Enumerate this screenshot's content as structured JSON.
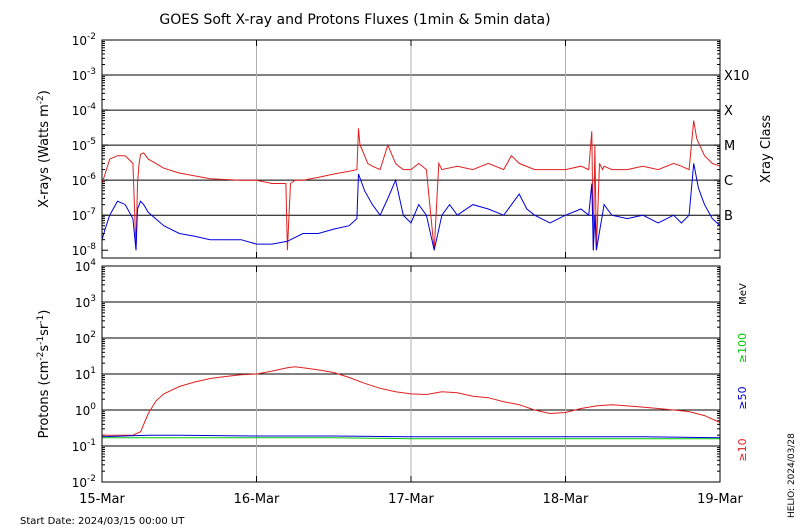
{
  "chart_data": [
    {
      "type": "line",
      "title": "GOES Soft X-ray and Protons Fluxes   (1min & 5min data)",
      "ylabel": "X-rays (Watts m^-2)",
      "yscale": "log",
      "ylim": [
        6e-09,
        0.01
      ],
      "xlim": [
        "2024-03-15 00:00",
        "2024-03-19 00:00"
      ],
      "y_tick_exponents": [
        -8,
        -7,
        -6,
        -5,
        -4,
        -3,
        -2
      ],
      "grid_exponents": [
        -7,
        -6,
        -5,
        -4,
        -3
      ],
      "right_axis_title": "Xray Class",
      "right_axis_labels": [
        {
          "label": "B",
          "y": 1e-07
        },
        {
          "label": "C",
          "y": 1e-06
        },
        {
          "label": "M",
          "y": 1e-05
        },
        {
          "label": "X",
          "y": 0.0001
        },
        {
          "label": "X10",
          "y": 0.001
        }
      ],
      "series": [
        {
          "color": "#e02020",
          "x": [
            0,
            0.02,
            0.05,
            0.1,
            0.15,
            0.2,
            0.22,
            0.23,
            0.24,
            0.25,
            0.27,
            0.3,
            0.4,
            0.5,
            0.7,
            0.9,
            1.0,
            1.1,
            1.15,
            1.19,
            1.2,
            1.22,
            1.25,
            1.3,
            1.4,
            1.5,
            1.6,
            1.65,
            1.66,
            1.67,
            1.68,
            1.7,
            1.72,
            1.75,
            1.8,
            1.85,
            1.9,
            1.92,
            1.95,
            2.0,
            2.05,
            2.1,
            2.15,
            2.18,
            2.2,
            2.3,
            2.4,
            2.5,
            2.6,
            2.65,
            2.7,
            2.8,
            2.9,
            3.0,
            3.1,
            3.15,
            3.17,
            3.18,
            3.19,
            3.2,
            3.22,
            3.24,
            3.25,
            3.3,
            3.4,
            3.5,
            3.6,
            3.7,
            3.75,
            3.8,
            3.83,
            3.85,
            3.9,
            3.95,
            4.0
          ],
          "y": [
            8e-07,
            1.5e-06,
            4e-06,
            5e-06,
            5e-06,
            3e-06,
            1e-08,
            8e-07,
            3e-06,
            5.5e-06,
            6e-06,
            4e-06,
            2.2e-06,
            1.6e-06,
            1.1e-06,
            1e-06,
            1e-06,
            8e-07,
            8e-07,
            8e-07,
            1e-08,
            8e-07,
            1e-06,
            1e-06,
            1.2e-06,
            1.5e-06,
            1.8e-06,
            2e-06,
            3e-05,
            1e-05,
            8e-06,
            5e-06,
            3e-06,
            2.5e-06,
            2e-06,
            1e-05,
            3e-06,
            2.5e-06,
            2e-06,
            2e-06,
            3e-06,
            2e-06,
            1e-08,
            3e-06,
            2e-06,
            2.5e-06,
            2e-06,
            3e-06,
            2e-06,
            5e-06,
            3e-06,
            2e-06,
            2e-06,
            2e-06,
            2.5e-06,
            2e-06,
            2.5e-05,
            1e-08,
            1e-05,
            1e-08,
            3e-06,
            2e-06,
            2.5e-06,
            2e-06,
            2e-06,
            2.5e-06,
            2e-06,
            3e-06,
            2.5e-06,
            2e-06,
            5e-05,
            1.5e-05,
            5e-06,
            3e-06,
            2.5e-06
          ]
        },
        {
          "color": "#0000dd",
          "x": [
            0,
            0.02,
            0.05,
            0.1,
            0.15,
            0.2,
            0.22,
            0.23,
            0.25,
            0.27,
            0.3,
            0.4,
            0.5,
            0.6,
            0.7,
            0.8,
            0.9,
            1.0,
            1.1,
            1.2,
            1.3,
            1.4,
            1.5,
            1.6,
            1.65,
            1.66,
            1.7,
            1.75,
            1.8,
            1.85,
            1.9,
            1.95,
            2.0,
            2.05,
            2.1,
            2.15,
            2.2,
            2.25,
            2.3,
            2.4,
            2.5,
            2.6,
            2.7,
            2.75,
            2.8,
            2.9,
            3.0,
            3.1,
            3.15,
            3.17,
            3.18,
            3.19,
            3.2,
            3.25,
            3.3,
            3.4,
            3.5,
            3.6,
            3.7,
            3.75,
            3.8,
            3.83,
            3.86,
            3.9,
            3.95,
            4.0
          ],
          "y": [
            2e-08,
            4e-08,
            1e-07,
            2.5e-07,
            2e-07,
            8e-08,
            1e-08,
            1.5e-07,
            2.5e-07,
            2e-07,
            1.2e-07,
            5e-08,
            3e-08,
            2.5e-08,
            2e-08,
            2e-08,
            2e-08,
            1.5e-08,
            1.5e-08,
            1.8e-08,
            3e-08,
            3e-08,
            4e-08,
            5e-08,
            8e-08,
            1.5e-06,
            5e-07,
            2e-07,
            1e-07,
            3e-07,
            1e-06,
            1e-07,
            6e-08,
            2e-07,
            1e-07,
            1e-08,
            1e-07,
            2e-07,
            1e-07,
            2e-07,
            1.5e-07,
            1e-07,
            4e-07,
            1.5e-07,
            1e-07,
            6e-08,
            1e-07,
            1.5e-07,
            1e-07,
            8e-07,
            1e-08,
            1e-07,
            1e-08,
            2e-07,
            1e-07,
            8e-08,
            1e-07,
            6e-08,
            1e-07,
            6e-08,
            1e-07,
            3e-06,
            6e-07,
            2e-07,
            8e-08,
            5e-08
          ]
        }
      ]
    },
    {
      "type": "line",
      "ylabel": "Protons (cm^-2 s^-1 sr^-1)",
      "yscale": "log",
      "ylim": [
        0.01,
        10000
      ],
      "xlim": [
        "2024-03-15 00:00",
        "2024-03-19 00:00"
      ],
      "y_tick_exponents": [
        -2,
        -1,
        0,
        1,
        2,
        3,
        4
      ],
      "grid_exponents": [
        -1,
        0,
        1,
        2,
        3
      ],
      "threshold": 10,
      "unit_label": "MeV",
      "legend_labels": [
        {
          "label": "≥100",
          "color": "#00cc00"
        },
        {
          "label": "≥50",
          "color": "#0000dd"
        },
        {
          "label": "≥10",
          "color": "#e02020"
        }
      ],
      "series": [
        {
          "color": "#e02020",
          "x": [
            0,
            0.2,
            0.25,
            0.3,
            0.35,
            0.4,
            0.5,
            0.6,
            0.7,
            0.8,
            0.9,
            1.0,
            1.1,
            1.2,
            1.25,
            1.3,
            1.4,
            1.5,
            1.6,
            1.7,
            1.8,
            1.9,
            2.0,
            2.1,
            2.2,
            2.3,
            2.4,
            2.5,
            2.6,
            2.7,
            2.8,
            2.9,
            3.0,
            3.1,
            3.2,
            3.3,
            3.4,
            3.5,
            3.6,
            3.7,
            3.8,
            3.9,
            4.0
          ],
          "y": [
            0.2,
            0.2,
            0.25,
            0.8,
            1.8,
            2.8,
            4.5,
            6,
            7.5,
            8.5,
            9.5,
            10,
            12,
            15,
            16,
            15,
            13,
            11,
            8,
            5.5,
            4,
            3.2,
            2.8,
            2.7,
            3.2,
            3,
            2.4,
            2.2,
            1.7,
            1.4,
            1,
            0.8,
            0.85,
            1.1,
            1.3,
            1.4,
            1.3,
            1.2,
            1.1,
            1,
            0.9,
            0.7,
            0.45
          ]
        },
        {
          "color": "#0000dd",
          "x": [
            0,
            0.3,
            0.5,
            1.0,
            1.5,
            2.0,
            2.5,
            3.0,
            3.5,
            4.0
          ],
          "y": [
            0.18,
            0.2,
            0.2,
            0.19,
            0.19,
            0.18,
            0.18,
            0.18,
            0.18,
            0.17
          ]
        },
        {
          "color": "#00cc00",
          "x": [
            0,
            0.5,
            1.0,
            1.5,
            2.0,
            2.5,
            3.0,
            3.5,
            4.0
          ],
          "y": [
            0.17,
            0.17,
            0.17,
            0.17,
            0.16,
            0.16,
            0.16,
            0.16,
            0.16
          ]
        }
      ]
    }
  ],
  "x_tick_labels": [
    "15-Mar",
    "16-Mar",
    "17-Mar",
    "18-Mar",
    "19-Mar"
  ],
  "footer": {
    "start_date": "Start Date: 2024/03/15 00:00 UT",
    "watermark": "HELIO: 2024/03/28"
  }
}
